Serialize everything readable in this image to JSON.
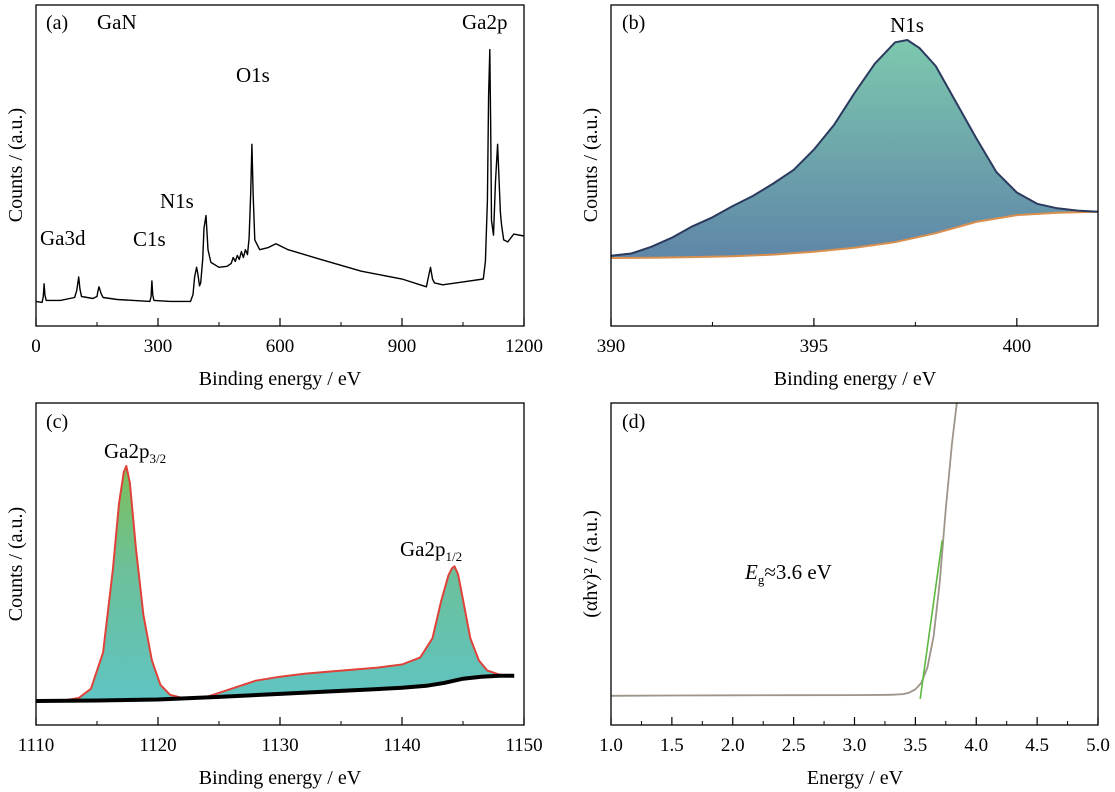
{
  "chart_data": [
    {
      "panel": "(a)",
      "type": "line",
      "sample_label": "GaN",
      "xlabel": "Binding energy / eV",
      "ylabel": "Counts / (a.u.)",
      "xlim": [
        0,
        1200
      ],
      "x_ticks": [
        0,
        300,
        600,
        900,
        1200
      ],
      "y_ticks_shown": false,
      "grid": false,
      "peak_labels": [
        {
          "text": "Ga3d",
          "x": 20
        },
        {
          "text": "C1s",
          "x": 285
        },
        {
          "text": "N1s",
          "x": 398
        },
        {
          "text": "O1s",
          "x": 531
        },
        {
          "text": "Ga2p",
          "x": 1118
        }
      ],
      "series": [
        {
          "color": "#000000",
          "x": [
            0,
            15,
            18,
            20,
            22,
            25,
            60,
            95,
            100,
            105,
            108,
            112,
            140,
            150,
            152,
            155,
            160,
            165,
            200,
            280,
            283,
            285,
            287,
            290,
            330,
            380,
            386,
            390,
            395,
            398,
            402,
            405,
            410,
            413,
            418,
            423,
            430,
            450,
            470,
            480,
            485,
            490,
            495,
            500,
            505,
            510,
            515,
            520,
            524,
            528,
            531,
            534,
            538,
            550,
            570,
            590,
            600,
            620,
            700,
            800,
            900,
            960,
            965,
            970,
            975,
            980,
            1000,
            1050,
            1100,
            1105,
            1110,
            1113,
            1116,
            1118,
            1120,
            1125,
            1130,
            1135,
            1142,
            1145,
            1150,
            1160,
            1175,
            1200
          ],
          "y": [
            17,
            16,
            22,
            35,
            24,
            18,
            18,
            21,
            28,
            42,
            30,
            22,
            20,
            22,
            27,
            32,
            25,
            21,
            19,
            17,
            22,
            38,
            24,
            18,
            17,
            17,
            24,
            42,
            52,
            45,
            33,
            36,
            60,
            92,
            105,
            70,
            57,
            52,
            53,
            56,
            62,
            58,
            64,
            60,
            68,
            62,
            70,
            65,
            82,
            128,
            178,
            125,
            80,
            70,
            72,
            76,
            74,
            70,
            60,
            48,
            40,
            32,
            42,
            52,
            40,
            36,
            34,
            37,
            40,
            58,
            120,
            228,
            275,
            195,
            100,
            85,
            140,
            178,
            108,
            95,
            80,
            78,
            86,
            84
          ]
        }
      ]
    },
    {
      "panel": "(b)",
      "type": "area",
      "xlabel": "Binding energy / eV",
      "ylabel": "Counts / (a.u.)",
      "xlim": [
        390,
        402
      ],
      "x_ticks": [
        390,
        395,
        400
      ],
      "y_ticks_shown": false,
      "grid": false,
      "peak_labels": [
        {
          "text": "N1s",
          "x": 397.1
        }
      ],
      "colors": {
        "spectrum_line": "#2b3a5e",
        "fill_top": "#7dc8ae",
        "fill_bottom": "#5f86a8",
        "background_line": "#d98f4e"
      },
      "series": [
        {
          "role": "spectrum",
          "x": [
            390,
            390.5,
            391,
            391.5,
            392,
            392.5,
            393,
            393.5,
            394,
            394.5,
            395,
            395.5,
            396,
            396.5,
            397,
            397.3,
            397.6,
            398,
            398.5,
            399,
            399.5,
            400,
            400.5,
            401,
            401.5,
            402
          ],
          "y": [
            2,
            4,
            10,
            18,
            28,
            36,
            46,
            55,
            66,
            78,
            96,
            118,
            146,
            172,
            191,
            193,
            186,
            170,
            138,
            106,
            76,
            58,
            48,
            44,
            42,
            41
          ]
        },
        {
          "role": "background",
          "x": [
            390,
            391,
            392,
            393,
            394,
            395,
            396,
            397,
            398,
            398.5,
            399,
            399.5,
            400,
            401,
            402
          ],
          "y": [
            0,
            0.3,
            0.8,
            1.5,
            3,
            5.5,
            9,
            14,
            22,
            27,
            32,
            35,
            38,
            40,
            41
          ]
        }
      ]
    },
    {
      "panel": "(c)",
      "type": "area",
      "xlabel": "Binding energy / eV",
      "ylabel": "Counts / (a.u.)",
      "xlim": [
        1110,
        1150
      ],
      "x_ticks": [
        1110,
        1120,
        1130,
        1140,
        1150
      ],
      "y_ticks_shown": false,
      "grid": false,
      "peak_labels": [
        {
          "text": "Ga2p",
          "sub": "3/2",
          "x": 1117.4
        },
        {
          "text": "Ga2p",
          "sub": "1/2",
          "x": 1144.3
        }
      ],
      "colors": {
        "spectrum_line": "#e0423a",
        "fill": "#64c2bd",
        "fill_peak": "#7cbf5a",
        "background_line": "#000000"
      },
      "series": [
        {
          "role": "spectrum",
          "x": [
            1110,
            1112,
            1113.5,
            1114.5,
            1115.5,
            1116.3,
            1116.8,
            1117.2,
            1117.4,
            1117.7,
            1118.2,
            1118.8,
            1119.5,
            1120.2,
            1121,
            1122,
            1124,
            1126,
            1128,
            1130,
            1132,
            1134,
            1136,
            1138,
            1140,
            1141.5,
            1142.5,
            1143.2,
            1143.8,
            1144.1,
            1144.3,
            1144.6,
            1145,
            1145.6,
            1146.3,
            1147,
            1148,
            1149.2
          ],
          "y": [
            0,
            0,
            3,
            12,
            48,
            130,
            195,
            226,
            232,
            215,
            150,
            85,
            40,
            16,
            6,
            3,
            4,
            12,
            20,
            24,
            27,
            29,
            31,
            33,
            36,
            43,
            62,
            98,
            124,
            131,
            133,
            125,
            100,
            62,
            40,
            30,
            26,
            25
          ]
        },
        {
          "role": "background",
          "x": [
            1110,
            1115,
            1120,
            1125,
            1130,
            1135,
            1140,
            1142,
            1143.5,
            1145,
            1146.5,
            1148,
            1149.2
          ],
          "y": [
            0,
            0.5,
            1.5,
            4,
            7,
            10,
            13,
            15,
            18,
            22,
            24,
            25,
            25
          ]
        }
      ]
    },
    {
      "panel": "(d)",
      "type": "line",
      "xlabel": "Energy / eV",
      "ylabel": "(αhv)² / (a.u.)",
      "xlim": [
        1.0,
        5.0
      ],
      "x_ticks": [
        "1.0",
        "1.5",
        "2.0",
        "2.5",
        "3.0",
        "3.5",
        "4.0",
        "4.5",
        "5.0"
      ],
      "y_ticks_shown": false,
      "grid": false,
      "annotation": {
        "E": "E",
        "sub": "g",
        "rest": "≈3.6 eV"
      },
      "colors": {
        "curve": "#9d948a",
        "fit": "#5cb83e"
      },
      "series": [
        {
          "role": "absorption",
          "x": [
            1.0,
            1.5,
            2.0,
            2.5,
            3.0,
            3.3,
            3.4,
            3.45,
            3.5,
            3.55,
            3.6,
            3.65,
            3.7,
            3.75,
            3.8,
            3.84
          ],
          "y": [
            0.2,
            0.5,
            0.7,
            0.8,
            0.9,
            1.2,
            2,
            3.5,
            7,
            14,
            30,
            62,
            118,
            195,
            262,
            305
          ]
        },
        {
          "role": "linear-fit",
          "x": [
            3.54,
            3.72
          ],
          "y": [
            -3,
            162
          ]
        }
      ]
    }
  ]
}
